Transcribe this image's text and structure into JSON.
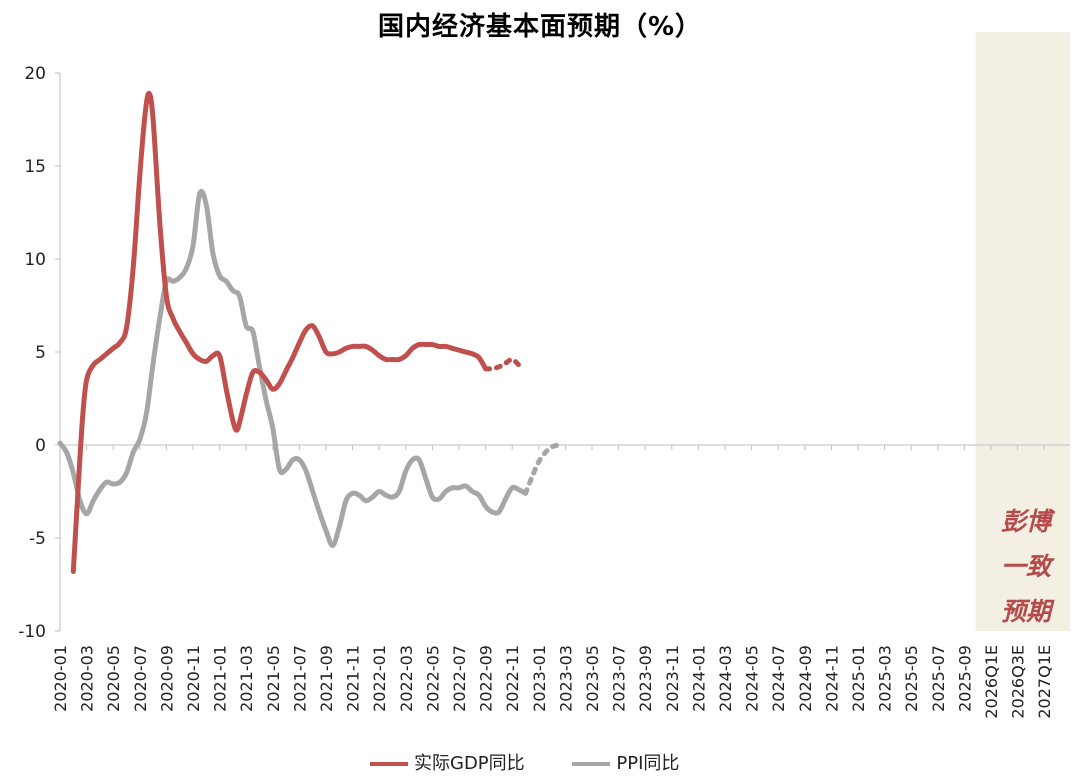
{
  "chart_data": {
    "type": "line",
    "title": "国内经济基本面预期（%）",
    "ylim": [
      -10,
      20
    ],
    "yticks": [
      -10,
      -5,
      0,
      5,
      10,
      15,
      20
    ],
    "categories": [
      "2020-01",
      "2020-03",
      "2020-05",
      "2020-07",
      "2020-09",
      "2020-11",
      "2021-01",
      "2021-03",
      "2021-05",
      "2021-07",
      "2021-09",
      "2021-11",
      "2022-01",
      "2022-03",
      "2022-05",
      "2022-07",
      "2022-09",
      "2022-11",
      "2023-01",
      "2023-03",
      "2023-05",
      "2023-07",
      "2023-09",
      "2023-11",
      "2024-01",
      "2024-03",
      "2024-05",
      "2024-07",
      "2024-09",
      "2024-11",
      "2025-01",
      "2025-03",
      "2025-05",
      "2025-07",
      "2025-09",
      "2026Q1E",
      "2026Q3E",
      "2027Q1E"
    ],
    "forecast_note_lines": [
      "彭博",
      "一致",
      "预期"
    ],
    "forecast_band_color": "#f3efe3",
    "series": [
      {
        "name": "实际GDP同比",
        "color": "#c0504d",
        "points": [
          [
            1,
            -6.8
          ],
          [
            1.35,
            -2.5
          ],
          [
            1.7,
            1.5
          ],
          [
            2,
            3.5
          ],
          [
            2.5,
            4.3
          ],
          [
            3,
            4.6
          ],
          [
            3.5,
            4.9
          ],
          [
            4,
            5.2
          ],
          [
            4.5,
            5.5
          ],
          [
            5,
            6.3
          ],
          [
            5.5,
            9.5
          ],
          [
            6,
            14.5
          ],
          [
            6.4,
            17.8
          ],
          [
            6.7,
            18.9
          ],
          [
            7,
            17.5
          ],
          [
            7.5,
            12.0
          ],
          [
            8,
            8.0
          ],
          [
            8.5,
            6.8
          ],
          [
            9,
            6.1
          ],
          [
            9.5,
            5.5
          ],
          [
            10,
            4.9
          ],
          [
            10.5,
            4.6
          ],
          [
            11,
            4.5
          ],
          [
            11.5,
            4.8
          ],
          [
            12,
            4.8
          ],
          [
            12.5,
            3.0
          ],
          [
            13,
            1.3
          ],
          [
            13.3,
            0.8
          ],
          [
            13.6,
            1.5
          ],
          [
            14,
            2.7
          ],
          [
            14.5,
            3.9
          ],
          [
            15,
            3.9
          ],
          [
            15.5,
            3.5
          ],
          [
            16,
            3.0
          ],
          [
            16.5,
            3.3
          ],
          [
            17,
            4.0
          ],
          [
            17.5,
            4.7
          ],
          [
            18,
            5.5
          ],
          [
            18.5,
            6.2
          ],
          [
            19,
            6.4
          ],
          [
            19.5,
            5.8
          ],
          [
            20,
            5.0
          ],
          [
            20.5,
            4.9
          ],
          [
            21,
            5.0
          ],
          [
            21.5,
            5.2
          ],
          [
            22,
            5.3
          ],
          [
            22.5,
            5.3
          ],
          [
            23,
            5.3
          ],
          [
            23.5,
            5.1
          ],
          [
            24,
            4.8
          ],
          [
            24.5,
            4.6
          ],
          [
            25,
            4.6
          ],
          [
            25.5,
            4.6
          ],
          [
            26,
            4.8
          ],
          [
            26.5,
            5.2
          ],
          [
            27,
            5.4
          ],
          [
            27.5,
            5.4
          ],
          [
            28,
            5.4
          ],
          [
            28.5,
            5.3
          ],
          [
            29,
            5.3
          ],
          [
            29.5,
            5.2
          ],
          [
            30,
            5.1
          ],
          [
            30.5,
            5.0
          ],
          [
            31,
            4.9
          ],
          [
            31.5,
            4.7
          ],
          [
            32,
            4.1
          ]
        ],
        "forecast": [
          [
            32,
            4.1
          ],
          [
            32.5,
            4.1
          ],
          [
            33,
            4.2
          ],
          [
            33.5,
            4.4
          ],
          [
            34,
            4.6
          ],
          [
            34.5,
            4.3
          ]
        ]
      },
      {
        "name": "PPI同比",
        "color": "#a6a6a6",
        "points": [
          [
            0,
            0.1
          ],
          [
            0.5,
            -0.4
          ],
          [
            1,
            -1.5
          ],
          [
            1.5,
            -3.0
          ],
          [
            2,
            -3.7
          ],
          [
            2.5,
            -3.0
          ],
          [
            3,
            -2.4
          ],
          [
            3.5,
            -2.0
          ],
          [
            4,
            -2.1
          ],
          [
            4.5,
            -2.0
          ],
          [
            5,
            -1.5
          ],
          [
            5.5,
            -0.4
          ],
          [
            6,
            0.3
          ],
          [
            6.5,
            1.7
          ],
          [
            7,
            4.4
          ],
          [
            7.5,
            6.8
          ],
          [
            8,
            8.8
          ],
          [
            8.5,
            8.8
          ],
          [
            9,
            9.0
          ],
          [
            9.5,
            9.5
          ],
          [
            10,
            10.7
          ],
          [
            10.5,
            13.5
          ],
          [
            11,
            12.9
          ],
          [
            11.5,
            10.3
          ],
          [
            12,
            9.1
          ],
          [
            12.5,
            8.8
          ],
          [
            13,
            8.3
          ],
          [
            13.5,
            8.0
          ],
          [
            14,
            6.4
          ],
          [
            14.5,
            6.1
          ],
          [
            15,
            4.2
          ],
          [
            15.5,
            2.4
          ],
          [
            16,
            0.9
          ],
          [
            16.5,
            -1.3
          ],
          [
            17,
            -1.3
          ],
          [
            17.5,
            -0.8
          ],
          [
            18,
            -0.8
          ],
          [
            18.5,
            -1.4
          ],
          [
            19,
            -2.5
          ],
          [
            19.5,
            -3.6
          ],
          [
            20,
            -4.6
          ],
          [
            20.5,
            -5.4
          ],
          [
            21,
            -4.4
          ],
          [
            21.5,
            -3.0
          ],
          [
            22,
            -2.6
          ],
          [
            22.5,
            -2.7
          ],
          [
            23,
            -3.0
          ],
          [
            23.5,
            -2.8
          ],
          [
            24,
            -2.5
          ],
          [
            24.5,
            -2.7
          ],
          [
            25,
            -2.8
          ],
          [
            25.5,
            -2.5
          ],
          [
            26,
            -1.4
          ],
          [
            26.5,
            -0.8
          ],
          [
            27,
            -0.8
          ],
          [
            27.5,
            -1.8
          ],
          [
            28,
            -2.8
          ],
          [
            28.5,
            -2.9
          ],
          [
            29,
            -2.5
          ],
          [
            29.5,
            -2.3
          ],
          [
            30,
            -2.3
          ],
          [
            30.5,
            -2.2
          ],
          [
            31,
            -2.5
          ],
          [
            31.5,
            -2.7
          ],
          [
            32,
            -3.3
          ],
          [
            32.5,
            -3.6
          ],
          [
            33,
            -3.6
          ],
          [
            33.5,
            -2.9
          ],
          [
            34,
            -2.3
          ],
          [
            34.5,
            -2.4
          ],
          [
            35,
            -2.6
          ]
        ],
        "forecast": [
          [
            35,
            -2.6
          ],
          [
            35.5,
            -1.7
          ],
          [
            36,
            -0.9
          ],
          [
            36.5,
            -0.4
          ],
          [
            37,
            -0.1
          ],
          [
            37.5,
            0.0
          ]
        ]
      }
    ]
  }
}
